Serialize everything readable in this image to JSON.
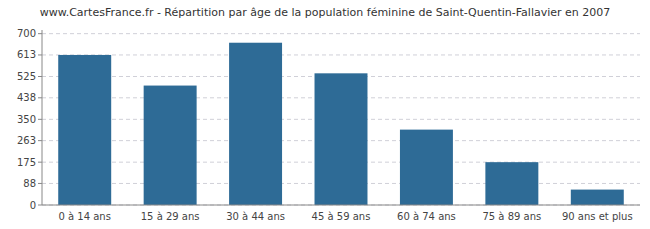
{
  "chart_data": {
    "type": "bar",
    "title": "www.CartesFrance.fr - Répartition par âge de la population féminine de Saint-Quentin-Fallavier en 2007",
    "categories": [
      "0 à 14 ans",
      "15 à 29 ans",
      "30 à 44 ans",
      "45 à 59 ans",
      "60 à 74 ans",
      "75 à 89 ans",
      "90 ans et plus"
    ],
    "values": [
      613,
      488,
      663,
      538,
      308,
      175,
      63
    ],
    "color": "#2e6b96",
    "ylim": [
      0,
      715
    ],
    "yticks": [
      0,
      88,
      175,
      263,
      350,
      438,
      525,
      613,
      700
    ],
    "grid": true
  }
}
